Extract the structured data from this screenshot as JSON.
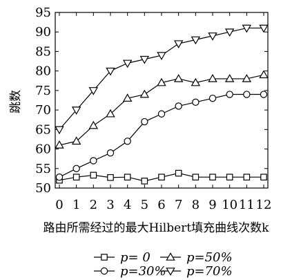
{
  "chart_data": {
    "type": "line",
    "xlabel": "路由所需经过的最大Hilbert填充曲线次数k",
    "ylabel": "跳数",
    "x": [
      0,
      1,
      2,
      3,
      4,
      5,
      6,
      7,
      8,
      9,
      10,
      11,
      12
    ],
    "ylim": [
      50,
      95
    ],
    "yticks": [
      50,
      55,
      60,
      65,
      70,
      75,
      80,
      85,
      90,
      95
    ],
    "grid": false,
    "legend_position": "bottom",
    "series": [
      {
        "name": "p= 0",
        "marker": "square",
        "values": [
          52,
          52.8,
          53.3,
          52.7,
          52.8,
          51.8,
          52.8,
          53.8,
          52.8,
          52.8,
          52.8,
          52.8,
          52.8
        ]
      },
      {
        "name": "p=50%",
        "marker": "triangle-up",
        "values": [
          61,
          62,
          66,
          69,
          73,
          74,
          77,
          78,
          77,
          78,
          78,
          78,
          79
        ]
      },
      {
        "name": "p=30%",
        "marker": "circle",
        "values": [
          52.8,
          55,
          57,
          59,
          62,
          67,
          69,
          71,
          72,
          73,
          74,
          74,
          74
        ]
      },
      {
        "name": "p=70%",
        "marker": "triangle-down",
        "values": [
          65,
          70,
          75,
          80,
          82,
          83,
          84,
          87,
          88,
          89,
          90,
          91,
          91
        ]
      }
    ]
  }
}
